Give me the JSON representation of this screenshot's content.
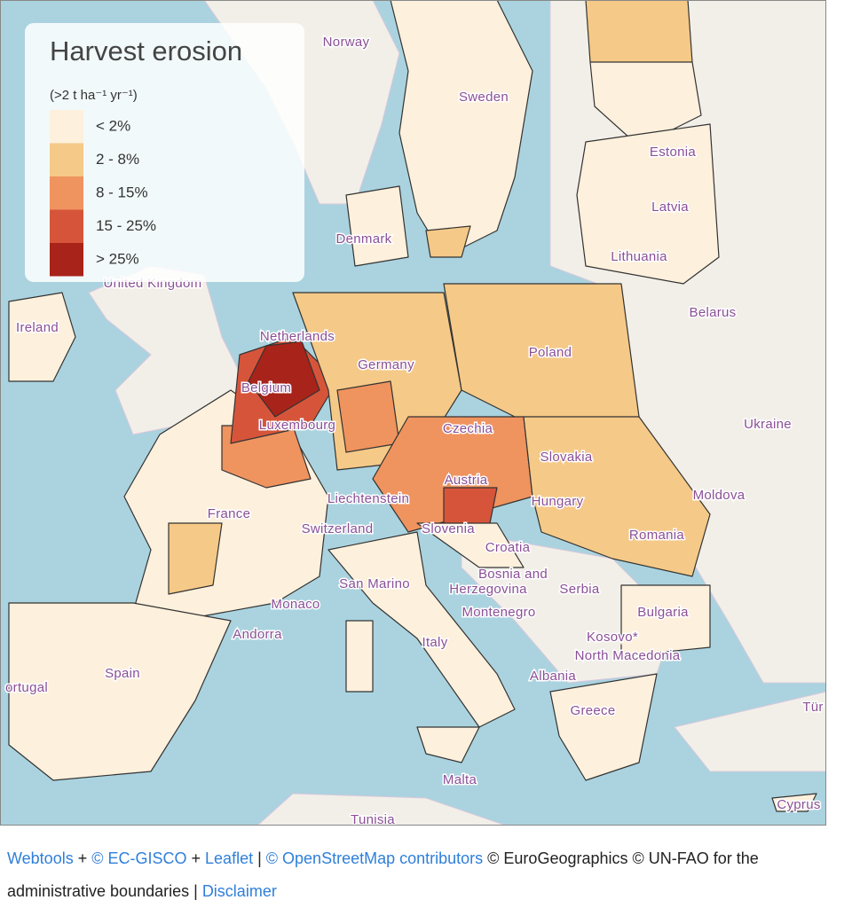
{
  "map": {
    "legend": {
      "title": "Harvest erosion",
      "unit": "(>2 t ha⁻¹ yr⁻¹)",
      "items": [
        {
          "label": "< 2%",
          "color": "#fdf0dc"
        },
        {
          "label": "2 - 8%",
          "color": "#f5c987"
        },
        {
          "label": "8 - 15%",
          "color": "#ef935f"
        },
        {
          "label": "15 - 25%",
          "color": "#d6553a"
        },
        {
          "label": "> 25%",
          "color": "#a8231a"
        }
      ]
    },
    "labels": [
      "Norway",
      "Sweden",
      "Estonia",
      "Latvia",
      "Denmark",
      "Lithuania",
      "United Kingdom",
      "Belarus",
      "Ireland",
      "Netherlands",
      "Poland",
      "Germany",
      "Belgium",
      "Luxembourg",
      "Czechia",
      "Ukraine",
      "Slovakia",
      "Austria",
      "Liechtenstein",
      "Moldova",
      "France",
      "Hungary",
      "Switzerland",
      "Slovenia",
      "Romania",
      "Croatia",
      "Bosnia and",
      "Herzegovina",
      "Serbia",
      "San Marino",
      "Monaco",
      "Montenegro",
      "Bulgaria",
      "Andorra",
      "Italy",
      "Kosovo*",
      "North Macedonia",
      "Spain",
      "Albania",
      "ortugal",
      "Greece",
      "Tür",
      "Malta",
      "Tunisia",
      "Cyprus"
    ],
    "attribution": [
      {
        "text": "Webtools",
        "link": true
      },
      {
        "text": "+"
      },
      {
        "text": "© EC-GISCO",
        "link": true
      },
      {
        "text": "+"
      },
      {
        "text": "Leaflet",
        "link": true
      },
      {
        "text": "|"
      },
      {
        "text": "© OpenStreetMap contributors",
        "link": true
      },
      {
        "text": "© EuroGeographics © UN-FAO for the administrative boundaries"
      },
      {
        "text": "|"
      },
      {
        "text": "Disclaimer",
        "link": true
      }
    ]
  }
}
